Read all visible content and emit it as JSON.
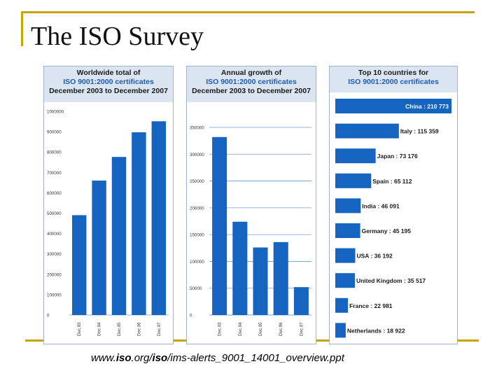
{
  "slide": {
    "title": "The ISO Survey",
    "footer_prefix": "www.",
    "footer_bold": "iso",
    "footer_mid": ".org/",
    "footer_bold2": "iso",
    "footer_suffix": "/ims-alerts_9001_14001_overview.ppt"
  },
  "colors": {
    "bar": "#1565c0",
    "panel_header": "#dbe5f1",
    "accent": "#c8a400",
    "header_blue": "#1f5bb0"
  },
  "chart_data": [
    {
      "type": "bar",
      "title_line1": "Worldwide total of",
      "title_line2": "ISO 9001:2000 certificates",
      "title_line3": "December 2003 to December 2007",
      "categories": [
        "Dec.03",
        "Dec.04",
        "Dec.05",
        "Dec.06",
        "Dec.07"
      ],
      "values": [
        490000,
        660000,
        776000,
        897000,
        951000
      ],
      "ylim": [
        0,
        1000000
      ],
      "yticks": [
        0,
        100000,
        200000,
        300000,
        400000,
        500000,
        600000,
        700000,
        800000,
        900000,
        1000000
      ],
      "grid": false
    },
    {
      "type": "bar",
      "title_line1": "Annual growth of",
      "title_line2": "ISO 9001:2000 certificates",
      "title_line3": "December 2003 to December 2007",
      "categories": [
        "Dec.03",
        "Dec.04",
        "Dec.05",
        "Dec.06",
        "Dec.07"
      ],
      "values": [
        332000,
        174000,
        126000,
        136000,
        52000
      ],
      "ylim": [
        0,
        350000
      ],
      "yticks": [
        0,
        50000,
        100000,
        150000,
        200000,
        250000,
        300000,
        350000
      ],
      "grid": true
    },
    {
      "type": "bar",
      "orientation": "horizontal",
      "title_line1": "Top 10 countries for",
      "title_line2": "ISO 9001:2000 certificates",
      "categories": [
        "China",
        "Italy",
        "Japan",
        "Spain",
        "India",
        "Germany",
        "USA",
        "United Kingdom",
        "France",
        "Netherlands"
      ],
      "value_labels": [
        "210 773",
        "115 359",
        "73 176",
        "65 112",
        "46 091",
        "45 195",
        "36 192",
        "35 517",
        "22 981",
        "18 922"
      ],
      "values": [
        210773,
        115359,
        73176,
        65112,
        46091,
        45195,
        36192,
        35517,
        22981,
        18922
      ]
    }
  ]
}
